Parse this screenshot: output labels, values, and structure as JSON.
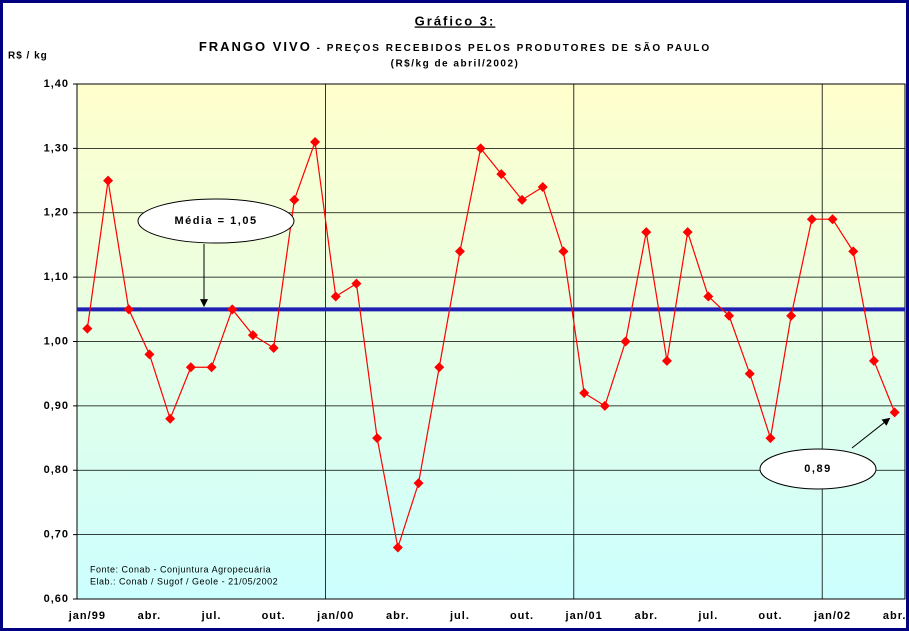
{
  "chart_data": {
    "type": "line",
    "heading": "Gráfico 3:",
    "title": "FRANGO VIVO",
    "title_rest": " - PREÇOS RECEBIDOS PELOS PRODUTORES DE SÃO PAULO",
    "subtitle": "(R$/kg de abril/2002)",
    "y_label": "R$ / kg",
    "categories": [
      "jan/99",
      null,
      null,
      "abr.",
      null,
      null,
      "jul.",
      null,
      null,
      "out.",
      null,
      null,
      "jan/00",
      null,
      null,
      "abr.",
      null,
      null,
      "jul.",
      null,
      null,
      "out.",
      null,
      null,
      "jan/01",
      null,
      null,
      "abr.",
      null,
      null,
      "jul.",
      null,
      null,
      "out.",
      null,
      null,
      "jan/02",
      null,
      null,
      "abr."
    ],
    "series": [
      {
        "name": "Frango vivo",
        "color": "#ff0000",
        "values": [
          1.02,
          1.25,
          1.05,
          0.98,
          0.88,
          0.96,
          0.96,
          1.05,
          1.01,
          0.99,
          1.22,
          1.31,
          1.07,
          1.09,
          0.85,
          0.68,
          0.78,
          0.96,
          1.14,
          1.3,
          1.26,
          1.22,
          1.24,
          1.14,
          0.92,
          0.9,
          1.0,
          1.17,
          0.97,
          1.17,
          1.07,
          1.04,
          0.95,
          0.85,
          1.04,
          1.19,
          1.19,
          1.14,
          0.97,
          0.89
        ]
      }
    ],
    "mean": 1.05,
    "mean_color": "#1f1fb4",
    "annotations": [
      {
        "text": "Média = 1,05"
      },
      {
        "text": "0,89"
      }
    ],
    "notes": [
      "Fonte: Conab - Conjuntura Agropecuária",
      "Elab.: Conab / Sugof / Geole - 21/05/2002"
    ],
    "ylim": [
      0.6,
      1.4
    ],
    "yticks": [
      {
        "value": 0.6,
        "label": "0,60"
      },
      {
        "value": 0.7,
        "label": "0,70"
      },
      {
        "value": 0.8,
        "label": "0,80"
      },
      {
        "value": 0.9,
        "label": "0,90"
      },
      {
        "value": 1.0,
        "label": "1,00"
      },
      {
        "value": 1.1,
        "label": "1,10"
      },
      {
        "value": 1.2,
        "label": "1,20"
      },
      {
        "value": 1.3,
        "label": "1,30"
      },
      {
        "value": 1.4,
        "label": "1,40"
      }
    ],
    "grid": true
  }
}
